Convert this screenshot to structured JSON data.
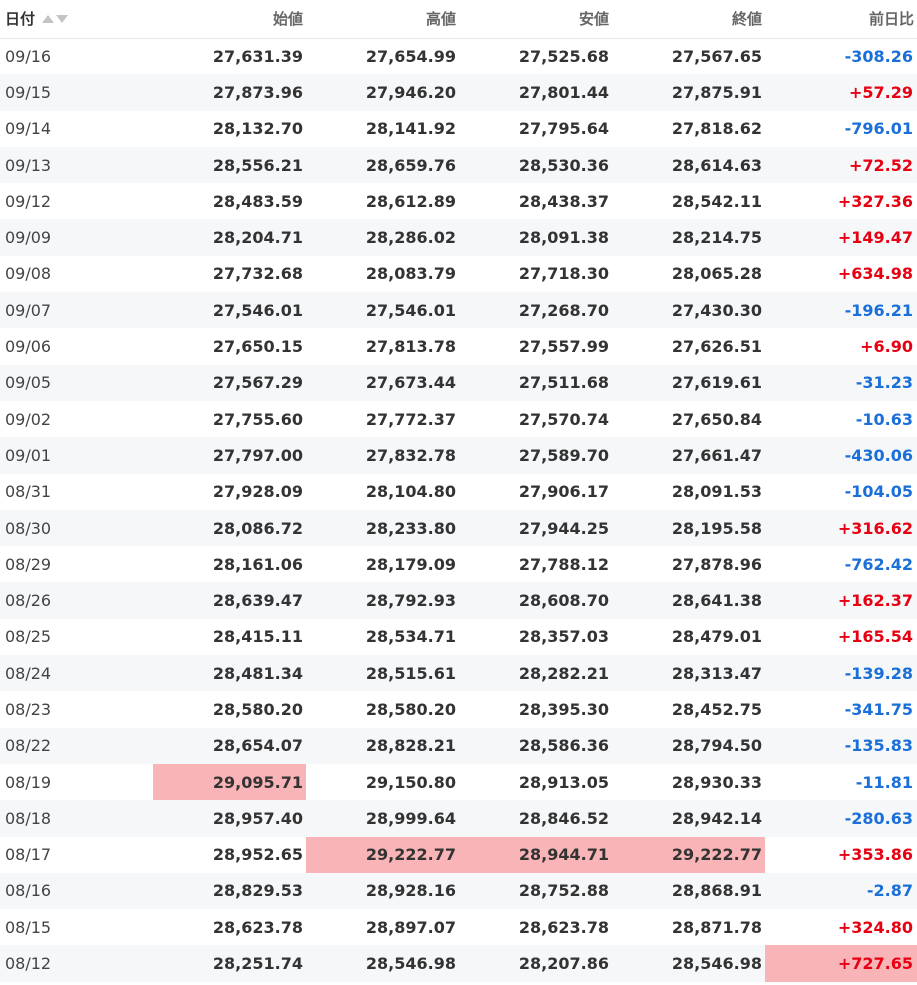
{
  "table": {
    "headers": {
      "date": "日付",
      "open": "始値",
      "high": "高値",
      "low": "安値",
      "close": "終値",
      "change": "前日比"
    },
    "colors": {
      "up": "#e60012",
      "down": "#1a6fd8",
      "highlight": "#f8b4b6",
      "stripe": "#f5f7f9"
    },
    "rows": [
      {
        "date": "09/16",
        "open": "27,631.39",
        "high": "27,654.99",
        "low": "27,525.68",
        "close": "27,567.65",
        "change": "-308.26",
        "direction": "down",
        "highlight": []
      },
      {
        "date": "09/15",
        "open": "27,873.96",
        "high": "27,946.20",
        "low": "27,801.44",
        "close": "27,875.91",
        "change": "+57.29",
        "direction": "up",
        "highlight": []
      },
      {
        "date": "09/14",
        "open": "28,132.70",
        "high": "28,141.92",
        "low": "27,795.64",
        "close": "27,818.62",
        "change": "-796.01",
        "direction": "down",
        "highlight": []
      },
      {
        "date": "09/13",
        "open": "28,556.21",
        "high": "28,659.76",
        "low": "28,530.36",
        "close": "28,614.63",
        "change": "+72.52",
        "direction": "up",
        "highlight": []
      },
      {
        "date": "09/12",
        "open": "28,483.59",
        "high": "28,612.89",
        "low": "28,438.37",
        "close": "28,542.11",
        "change": "+327.36",
        "direction": "up",
        "highlight": []
      },
      {
        "date": "09/09",
        "open": "28,204.71",
        "high": "28,286.02",
        "low": "28,091.38",
        "close": "28,214.75",
        "change": "+149.47",
        "direction": "up",
        "highlight": []
      },
      {
        "date": "09/08",
        "open": "27,732.68",
        "high": "28,083.79",
        "low": "27,718.30",
        "close": "28,065.28",
        "change": "+634.98",
        "direction": "up",
        "highlight": []
      },
      {
        "date": "09/07",
        "open": "27,546.01",
        "high": "27,546.01",
        "low": "27,268.70",
        "close": "27,430.30",
        "change": "-196.21",
        "direction": "down",
        "highlight": []
      },
      {
        "date": "09/06",
        "open": "27,650.15",
        "high": "27,813.78",
        "low": "27,557.99",
        "close": "27,626.51",
        "change": "+6.90",
        "direction": "up",
        "highlight": []
      },
      {
        "date": "09/05",
        "open": "27,567.29",
        "high": "27,673.44",
        "low": "27,511.68",
        "close": "27,619.61",
        "change": "-31.23",
        "direction": "down",
        "highlight": []
      },
      {
        "date": "09/02",
        "open": "27,755.60",
        "high": "27,772.37",
        "low": "27,570.74",
        "close": "27,650.84",
        "change": "-10.63",
        "direction": "down",
        "highlight": []
      },
      {
        "date": "09/01",
        "open": "27,797.00",
        "high": "27,832.78",
        "low": "27,589.70",
        "close": "27,661.47",
        "change": "-430.06",
        "direction": "down",
        "highlight": []
      },
      {
        "date": "08/31",
        "open": "27,928.09",
        "high": "28,104.80",
        "low": "27,906.17",
        "close": "28,091.53",
        "change": "-104.05",
        "direction": "down",
        "highlight": []
      },
      {
        "date": "08/30",
        "open": "28,086.72",
        "high": "28,233.80",
        "low": "27,944.25",
        "close": "28,195.58",
        "change": "+316.62",
        "direction": "up",
        "highlight": []
      },
      {
        "date": "08/29",
        "open": "28,161.06",
        "high": "28,179.09",
        "low": "27,788.12",
        "close": "27,878.96",
        "change": "-762.42",
        "direction": "down",
        "highlight": []
      },
      {
        "date": "08/26",
        "open": "28,639.47",
        "high": "28,792.93",
        "low": "28,608.70",
        "close": "28,641.38",
        "change": "+162.37",
        "direction": "up",
        "highlight": []
      },
      {
        "date": "08/25",
        "open": "28,415.11",
        "high": "28,534.71",
        "low": "28,357.03",
        "close": "28,479.01",
        "change": "+165.54",
        "direction": "up",
        "highlight": []
      },
      {
        "date": "08/24",
        "open": "28,481.34",
        "high": "28,515.61",
        "low": "28,282.21",
        "close": "28,313.47",
        "change": "-139.28",
        "direction": "down",
        "highlight": []
      },
      {
        "date": "08/23",
        "open": "28,580.20",
        "high": "28,580.20",
        "low": "28,395.30",
        "close": "28,452.75",
        "change": "-341.75",
        "direction": "down",
        "highlight": []
      },
      {
        "date": "08/22",
        "open": "28,654.07",
        "high": "28,828.21",
        "low": "28,586.36",
        "close": "28,794.50",
        "change": "-135.83",
        "direction": "down",
        "highlight": []
      },
      {
        "date": "08/19",
        "open": "29,095.71",
        "high": "29,150.80",
        "low": "28,913.05",
        "close": "28,930.33",
        "change": "-11.81",
        "direction": "down",
        "highlight": [
          "open"
        ]
      },
      {
        "date": "08/18",
        "open": "28,957.40",
        "high": "28,999.64",
        "low": "28,846.52",
        "close": "28,942.14",
        "change": "-280.63",
        "direction": "down",
        "highlight": []
      },
      {
        "date": "08/17",
        "open": "28,952.65",
        "high": "29,222.77",
        "low": "28,944.71",
        "close": "29,222.77",
        "change": "+353.86",
        "direction": "up",
        "highlight": [
          "high",
          "low",
          "close"
        ]
      },
      {
        "date": "08/16",
        "open": "28,829.53",
        "high": "28,928.16",
        "low": "28,752.88",
        "close": "28,868.91",
        "change": "-2.87",
        "direction": "down",
        "highlight": []
      },
      {
        "date": "08/15",
        "open": "28,623.78",
        "high": "28,897.07",
        "low": "28,623.78",
        "close": "28,871.78",
        "change": "+324.80",
        "direction": "up",
        "highlight": []
      },
      {
        "date": "08/12",
        "open": "28,251.74",
        "high": "28,546.98",
        "low": "28,207.86",
        "close": "28,546.98",
        "change": "+727.65",
        "direction": "up",
        "highlight": [
          "change"
        ]
      }
    ]
  }
}
